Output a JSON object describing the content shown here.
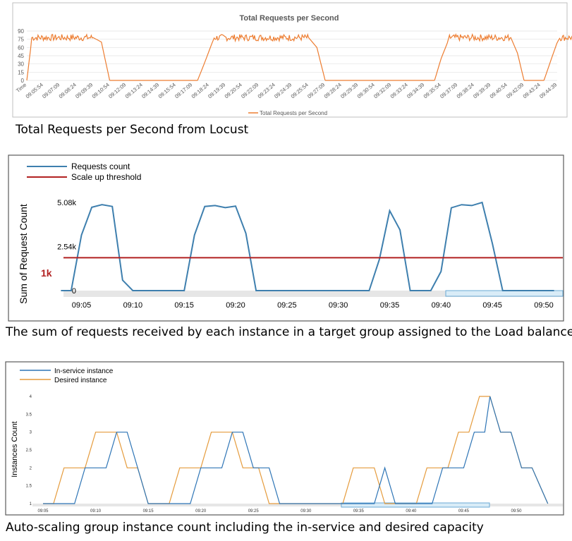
{
  "captions": {
    "chart1": "Total Requests per Second from Locust",
    "chart2": "The sum of requests received by each instance in a target group assigned to the Load balancer",
    "chart3": "Auto-scaling group instance count including the in-service and desired capacity"
  },
  "colors": {
    "orange": "#ED7D31",
    "blue": "#3E7FAE",
    "red": "#B22222",
    "asg_blue": "#2E75B6",
    "asg_orange": "#E59B3C"
  },
  "chart_data": [
    {
      "type": "line",
      "title": "Total Requests per Second",
      "xlabel": "",
      "ylabel": "",
      "ylim": [
        0,
        90
      ],
      "yticks": [
        "0",
        "15",
        "30",
        "45",
        "60",
        "75",
        "90"
      ],
      "xtick_labels": [
        "Time",
        "09:05:54",
        "09:07:09",
        "09:08:24",
        "09:09:39",
        "09:10:54",
        "09:12:09",
        "09:13:24",
        "09:14:39",
        "09:15:54",
        "09:17:09",
        "09:18:24",
        "09:19:39",
        "09:20:54",
        "09:22:09",
        "09:23:24",
        "09:24:39",
        "09:25:54",
        "09:27:09",
        "09:28:24",
        "09:29:39",
        "09:30:54",
        "09:32:09",
        "09:33:24",
        "09:34:39",
        "09:35:54",
        "09:37:09",
        "09:38:24",
        "09:39:39",
        "09:40:54",
        "09:42:09",
        "09:43:24",
        "09:44:39"
      ],
      "legend": [
        "Total Requests per Second"
      ],
      "legend_position": "bottom",
      "grid": true,
      "series": [
        {
          "name": "Total Requests per Second",
          "segments": [
            {
              "x": [
                0,
                0.3,
                1,
                4,
                4.5,
                5
              ],
              "y": [
                0,
                75,
                78,
                78,
                70,
                0
              ]
            },
            {
              "x": [
                5,
                10.3
              ],
              "y": [
                0,
                0
              ]
            },
            {
              "x": [
                10.3,
                10.7,
                11.3,
                17.0,
                17.5,
                18
              ],
              "y": [
                0,
                30,
                78,
                78,
                60,
                0
              ]
            },
            {
              "x": [
                18,
                24.6
              ],
              "y": [
                0,
                0
              ]
            },
            {
              "x": [
                24.6,
                25,
                25.5,
                29.2,
                29.6,
                30
              ],
              "y": [
                0,
                40,
                78,
                78,
                50,
                0
              ]
            },
            {
              "x": [
                30,
                31.2
              ],
              "y": [
                0,
                0
              ]
            },
            {
              "x": [
                31.2,
                31.6,
                32.1,
                36.5,
                37,
                37.3
              ],
              "y": [
                0,
                35,
                78,
                78,
                40,
                0
              ]
            }
          ]
        }
      ]
    },
    {
      "type": "line",
      "title": "",
      "xlabel": "",
      "ylabel": "Sum of Request Count",
      "ylim": [
        0,
        5080
      ],
      "yticks": [
        "0",
        "2.54k",
        "5.08k"
      ],
      "threshold_label": "1k",
      "xticks": [
        "09:05",
        "09:10",
        "09:15",
        "09:20",
        "09:25",
        "09:30",
        "09:35",
        "09:40",
        "09:45",
        "09:50"
      ],
      "legend": [
        "Requests count",
        "Scale up threshold"
      ],
      "legend_position": "top-left",
      "grid": false,
      "series": [
        {
          "name": "Requests count",
          "x": [
            "09:03",
            "09:04",
            "09:05",
            "09:06",
            "09:07",
            "09:08",
            "09:09",
            "09:10",
            "09:11",
            "09:12",
            "09:13",
            "09:14",
            "09:15",
            "09:16",
            "09:17",
            "09:18",
            "09:19",
            "09:20",
            "09:21",
            "09:22",
            "09:23",
            "09:24",
            "09:25",
            "09:26",
            "09:27",
            "09:28",
            "09:29",
            "09:30",
            "09:31",
            "09:32",
            "09:33",
            "09:34",
            "09:35",
            "09:36",
            "09:37",
            "09:38",
            "09:39",
            "09:40",
            "09:41",
            "09:42",
            "09:43",
            "09:44",
            "09:45",
            "09:46",
            "09:47",
            "09:48",
            "09:49",
            "09:50",
            "09:51"
          ],
          "values": [
            0,
            0,
            3200,
            4800,
            4950,
            4850,
            600,
            0,
            0,
            0,
            0,
            0,
            0,
            3200,
            4850,
            4900,
            4780,
            4870,
            3300,
            0,
            0,
            0,
            0,
            0,
            0,
            0,
            0,
            0,
            0,
            0,
            0,
            1800,
            4600,
            3500,
            0,
            0,
            0,
            1100,
            4770,
            4950,
            4900,
            5080,
            2700,
            0,
            0,
            0,
            0,
            0,
            0
          ]
        },
        {
          "name": "Scale up threshold",
          "values": [
            1000
          ]
        }
      ]
    },
    {
      "type": "line",
      "title": "",
      "xlabel": "",
      "ylabel": "Instances Count",
      "ylim": [
        1,
        4
      ],
      "yticks": [
        "1",
        "1.5",
        "2",
        "2.5",
        "3",
        "3.5",
        "4"
      ],
      "xticks": [
        "09:05",
        "09:10",
        "09:15",
        "09:20",
        "09:25",
        "09:30",
        "09:35",
        "09:40",
        "09:45",
        "09:50"
      ],
      "legend": [
        "In-service instance",
        "Desired instance"
      ],
      "legend_position": "top-left",
      "grid": false,
      "series": [
        {
          "name": "In-service instance",
          "x": [
            5,
            8,
            9,
            11,
            12,
            13,
            15,
            19,
            20,
            22,
            23,
            24,
            25,
            26.5,
            27.5,
            35,
            36.5,
            37.5,
            38.5,
            42,
            43,
            45,
            46,
            47,
            47.5,
            48.5,
            49.5,
            50.5,
            51.5,
            53
          ],
          "values": [
            1,
            1,
            2,
            2,
            3,
            3,
            1,
            1,
            2,
            2,
            3,
            3,
            2,
            2,
            1,
            1,
            1,
            2,
            1,
            1,
            2,
            2,
            3,
            3,
            4,
            3,
            3,
            2,
            2,
            1
          ]
        },
        {
          "name": "Desired instance",
          "x": [
            5,
            6,
            7,
            9,
            10,
            12,
            13,
            14,
            15,
            17,
            18,
            20,
            21,
            23,
            24,
            25.5,
            26.5,
            33.5,
            34.5,
            36.5,
            37.5,
            40.5,
            41.5,
            43.5,
            44.5,
            45.5,
            46.5,
            47.5,
            48.5,
            49.5,
            50.5,
            51.5,
            53
          ],
          "values": [
            1,
            1,
            2,
            2,
            3,
            3,
            2,
            2,
            1,
            1,
            2,
            2,
            3,
            3,
            2,
            2,
            1,
            1,
            2,
            2,
            1,
            1,
            2,
            2,
            3,
            3,
            4,
            4,
            3,
            3,
            2,
            2,
            1
          ]
        }
      ]
    }
  ]
}
